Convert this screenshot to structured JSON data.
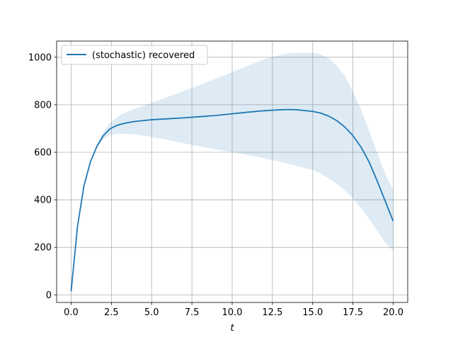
{
  "chart_data": {
    "type": "line",
    "title": "",
    "xlabel": "t",
    "ylabel": "",
    "xlim": [
      -0.9,
      20.9
    ],
    "ylim": [
      -32,
      1068
    ],
    "grid": true,
    "legend_placement": "top-left",
    "x_ticks": [
      0.0,
      2.5,
      5.0,
      7.5,
      10.0,
      12.5,
      15.0,
      17.5,
      20.0
    ],
    "x_tick_labels": [
      "0.0",
      "2.5",
      "5.0",
      "7.5",
      "10.0",
      "12.5",
      "15.0",
      "17.5",
      "20.0"
    ],
    "y_ticks": [
      0,
      200,
      400,
      600,
      800,
      1000
    ],
    "y_tick_labels": [
      "0",
      "200",
      "400",
      "600",
      "800",
      "1000"
    ],
    "series": [
      {
        "name": "(stochastic) recovered",
        "color": "#1f77b4",
        "x": [
          0.0,
          0.4,
          0.8,
          1.2,
          1.6,
          2.0,
          2.4,
          2.8,
          3.2,
          3.6,
          4.0,
          5.0,
          6.0,
          7.0,
          8.0,
          9.0,
          10.0,
          11.0,
          12.0,
          13.0,
          13.6,
          14.0,
          15.0,
          15.5,
          16.0,
          16.5,
          17.0,
          17.5,
          18.0,
          18.5,
          19.0,
          19.5,
          20.0
        ],
        "values": [
          15,
          290,
          460,
          560,
          625,
          670,
          698,
          712,
          720,
          726,
          730,
          737,
          741,
          745,
          750,
          755,
          762,
          769,
          775,
          779,
          780,
          779,
          772,
          765,
          752,
          733,
          706,
          670,
          622,
          560,
          480,
          395,
          310
        ],
        "band_lower": [
          15,
          290,
          460,
          560,
          620,
          655,
          672,
          678,
          678,
          677,
          675,
          665,
          652,
          638,
          625,
          612,
          600,
          588,
          575,
          560,
          550,
          543,
          525,
          510,
          490,
          468,
          440,
          405,
          365,
          320,
          270,
          220,
          185
        ],
        "band_upper": [
          15,
          290,
          460,
          560,
          630,
          685,
          722,
          745,
          762,
          774,
          784,
          808,
          833,
          858,
          883,
          910,
          938,
          965,
          992,
          1010,
          1017,
          1018,
          1018,
          1012,
          995,
          965,
          920,
          855,
          780,
          690,
          600,
          510,
          440
        ]
      }
    ],
    "band_color": "#1f77b4",
    "band_opacity": 0.15
  }
}
